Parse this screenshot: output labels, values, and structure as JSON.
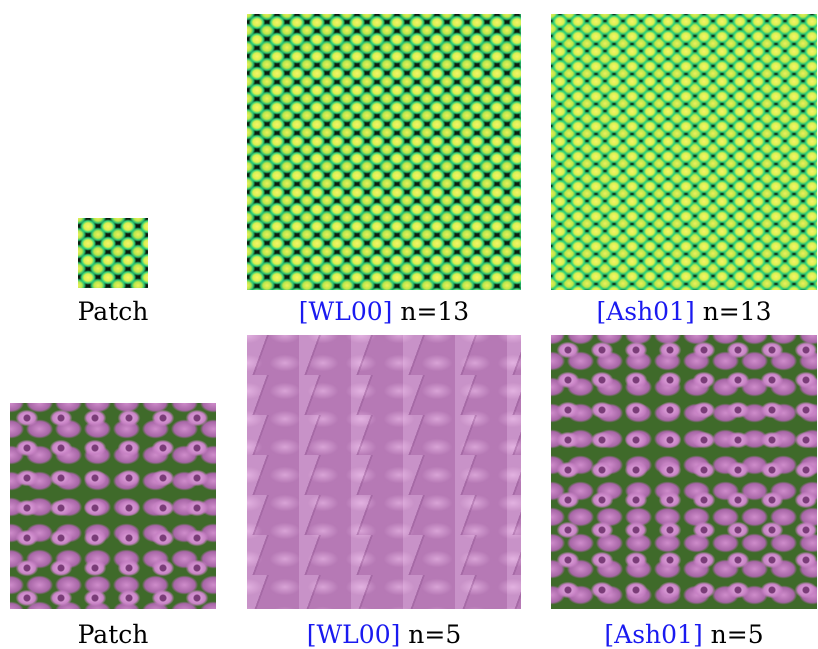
{
  "rows": [
    {
      "panels": [
        {
          "image": "scales-texture-patch",
          "caption": "Patch"
        },
        {
          "image": "scales-texture-wl00-synthesis",
          "caption_cite": "[WL00]",
          "caption_suffix": " n=13"
        },
        {
          "image": "scales-texture-ash01-synthesis",
          "caption_cite": "[Ash01]",
          "caption_suffix": " n=13"
        }
      ]
    },
    {
      "panels": [
        {
          "image": "flower-texture-patch",
          "caption": "Patch"
        },
        {
          "image": "flower-texture-wl00-synthesis",
          "caption_cite": "[WL00]",
          "caption_suffix": " n=5"
        },
        {
          "image": "flower-texture-ash01-synthesis",
          "caption_cite": "[Ash01]",
          "caption_suffix": " n=5"
        }
      ]
    }
  ],
  "colors": {
    "citation_link": "#1a1af0",
    "caption_text": "#000000"
  }
}
